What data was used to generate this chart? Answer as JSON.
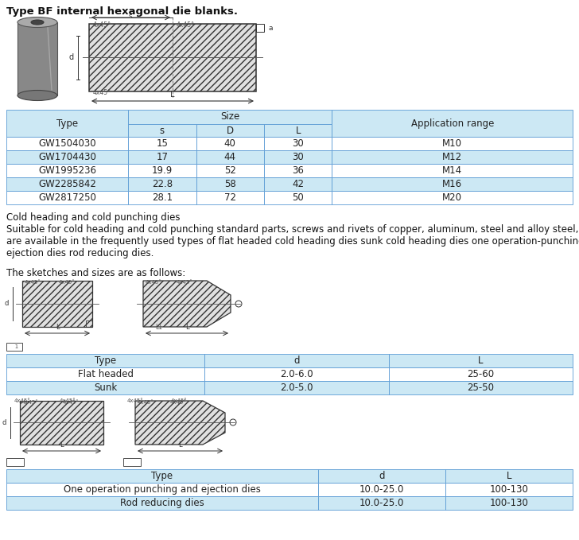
{
  "title": "Type BF internal hexagonal die blanks.",
  "table1": {
    "rows": [
      [
        "GW1504030",
        "15",
        "40",
        "30",
        "M10"
      ],
      [
        "GW1704430",
        "17",
        "44",
        "30",
        "M12"
      ],
      [
        "GW1995236",
        "19.9",
        "52",
        "36",
        "M14"
      ],
      [
        "GW2285842",
        "22.8",
        "58",
        "42",
        "M16"
      ],
      [
        "GW2817250",
        "28.1",
        "72",
        "50",
        "M20"
      ]
    ],
    "highlight_rows": [
      1,
      3
    ]
  },
  "paragraph1": "Cold heading and cold punching dies",
  "paragraph2_lines": [
    "Suitable for cold heading and cold punching standard parts, screws and rivets of copper, aluminum, steel and alloy steel, they",
    "are available in the frequently used types of flat headed cold heading dies sunk cold heading dies one operation-punching and",
    "ejection dies rod reducing dies."
  ],
  "paragraph3": "The sketches and sizes are as follows:",
  "table2": {
    "headers": [
      "Type",
      "d",
      "L"
    ],
    "rows": [
      [
        "Flat headed",
        "2.0-6.0",
        "25-60"
      ],
      [
        "Sunk",
        "2.0-5.0",
        "25-50"
      ]
    ],
    "highlight_rows": [
      1
    ]
  },
  "table3": {
    "headers": [
      "Type",
      "d",
      "L"
    ],
    "rows": [
      [
        "One operation punching and ejection dies",
        "10.0-25.0",
        "100-130"
      ],
      [
        "Rod reducing dies",
        "10.0-25.0",
        "100-130"
      ]
    ],
    "highlight_rows": [
      1
    ]
  },
  "bg_color": "#ffffff",
  "border_color": "#5b9bd5",
  "header_bg": "#cce8f4",
  "highlight_color": "#cce8f4",
  "font_size": 8.5,
  "title_font_size": 9.5
}
